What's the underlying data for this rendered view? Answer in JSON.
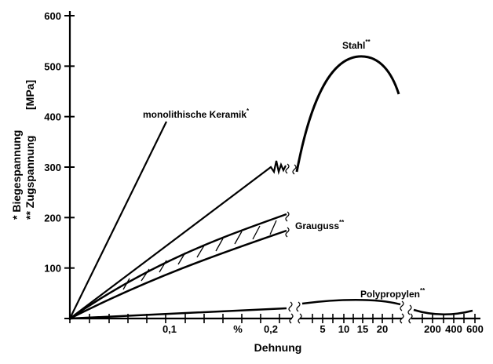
{
  "chart_data": {
    "type": "line",
    "title": "",
    "xlabel": "Dehnung",
    "ylabel_lines": [
      "* Biegespannung",
      "** Zugspannung"
    ],
    "ylabel_unit": "[MPa]",
    "ylim": [
      0,
      600
    ],
    "y_ticks": [
      "0",
      "100",
      "200",
      "300",
      "400",
      "500",
      "600"
    ],
    "x_axis_segments": [
      {
        "scale": "linear",
        "unit": "%",
        "ticks": [
          "0,1",
          "%",
          "0,2"
        ]
      },
      {
        "scale": "linear",
        "ticks": [
          "5",
          "10",
          "15",
          "20"
        ]
      },
      {
        "scale": "linear",
        "ticks": [
          "200",
          "400",
          "600"
        ]
      }
    ],
    "series": [
      {
        "name": "monolithische Keramik",
        "mark": "*",
        "points": [
          [
            0,
            0
          ],
          [
            0.1,
            310
          ],
          [
            0.115,
            400
          ]
        ]
      },
      {
        "name": "Stahl",
        "mark": "**",
        "segment_1": [
          [
            0,
            0
          ],
          [
            0.2,
            300
          ],
          [
            0.215,
            306
          ]
        ],
        "segment_2": [
          [
            1,
            300
          ],
          [
            3,
            420
          ],
          [
            8,
            500
          ],
          [
            15,
            520
          ],
          [
            20,
            500
          ],
          [
            24,
            445
          ]
        ]
      },
      {
        "name": "Grauguss",
        "mark": "**",
        "upper": [
          [
            0,
            0
          ],
          [
            0.1,
            115
          ],
          [
            0.2,
            195
          ],
          [
            0.215,
            205
          ]
        ],
        "lower": [
          [
            0,
            0
          ],
          [
            0.1,
            100
          ],
          [
            0.2,
            165
          ],
          [
            0.215,
            172
          ]
        ]
      },
      {
        "name": "Polypropylen",
        "mark": "**",
        "segment_1": [
          [
            0,
            0
          ],
          [
            0.1,
            7
          ],
          [
            0.215,
            18
          ]
        ],
        "segment_2": [
          [
            1,
            20
          ],
          [
            15,
            32
          ],
          [
            25,
            25
          ]
        ],
        "segment_3": [
          [
            100,
            15
          ],
          [
            300,
            8
          ],
          [
            600,
            17
          ]
        ]
      }
    ]
  }
}
